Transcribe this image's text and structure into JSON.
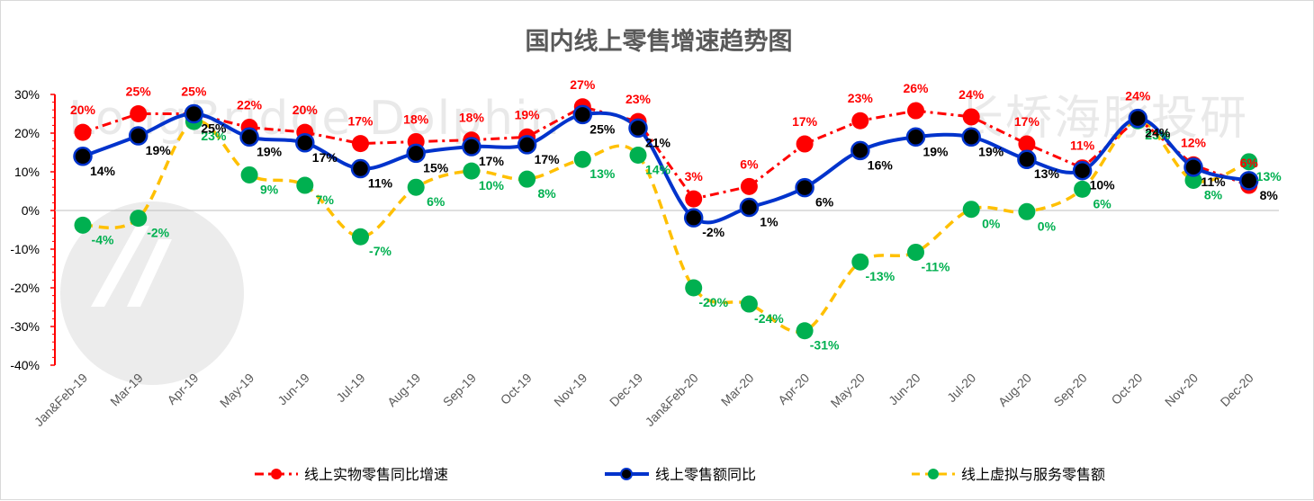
{
  "chart_data": {
    "type": "line",
    "title": "国内线上零售增速趋势图",
    "categories": [
      "Jan&Feb-19",
      "Mar-19",
      "Apr-19",
      "May-19",
      "Jun-19",
      "Jul-19",
      "Aug-19",
      "Sep-19",
      "Oct-19",
      "Nov-19",
      "Dec-19",
      "Jan&Feb-20",
      "Mar-20",
      "Apr-20",
      "May-20",
      "Jun-20",
      "Jul-20",
      "Aug-20",
      "Sep-20",
      "Oct-20",
      "Nov-20",
      "Dec-20"
    ],
    "ylim": [
      -40,
      30
    ],
    "yticks": [
      "30%",
      "20%",
      "10%",
      "0%",
      "-10%",
      "-20%",
      "-30%",
      "-40%"
    ],
    "ytick_values": [
      30,
      20,
      10,
      0,
      -10,
      -20,
      -30,
      -40
    ],
    "grid": false,
    "legend_position": "bottom",
    "series": [
      {
        "name": "线上实物零售同比增速",
        "color": "#ff0000",
        "line_style": "dash-dot",
        "smooth": false,
        "values": [
          20.2,
          25,
          25,
          21.5,
          20.2,
          17.3,
          17.8,
          18.2,
          19,
          26.8,
          23,
          3,
          6.2,
          17.2,
          23.2,
          25.8,
          24.2,
          17.2,
          11,
          23.8,
          11.8,
          6.5
        ],
        "labels": [
          "20%",
          "25%",
          "25%",
          "22%",
          "20%",
          "17%",
          "18%",
          "18%",
          "19%",
          "27%",
          "23%",
          "3%",
          "6%",
          "17%",
          "23%",
          "26%",
          "24%",
          "17%",
          "11%",
          "24%",
          "12%",
          "6%"
        ]
      },
      {
        "name": "线上零售额同比",
        "color": "#0033cc",
        "line_style": "solid",
        "smooth": true,
        "values": [
          14,
          19.3,
          25,
          19,
          17.5,
          10.8,
          14.8,
          16.5,
          17,
          24.8,
          21.3,
          -1.9,
          0.8,
          5.9,
          15.5,
          19,
          19,
          13.2,
          10.3,
          23.8,
          11.2,
          7.7
        ],
        "labels": [
          "14%",
          "19%",
          "25%",
          "19%",
          "17%",
          "11%",
          "15%",
          "17%",
          "17%",
          "25%",
          "21%",
          "-2%",
          "1%",
          "6%",
          "16%",
          "19%",
          "19%",
          "13%",
          "10%",
          "24%",
          "11%",
          "8%"
        ]
      },
      {
        "name": "线上虚拟与服务零售额",
        "color": "#ffc000",
        "line_style": "dash",
        "smooth": true,
        "values": [
          -3.8,
          -2,
          23,
          9.2,
          6.5,
          -6.8,
          6,
          10.2,
          8.1,
          13.2,
          14.3,
          -20,
          -24.2,
          -31.1,
          -13.3,
          -10.8,
          0.3,
          -0.3,
          5.5,
          23.2,
          7.8,
          12.6
        ],
        "labels": [
          "-4%",
          "-2%",
          "23%",
          "9%",
          "7%",
          "-7%",
          "6%",
          "10%",
          "8%",
          "13%",
          "14%",
          "-20%",
          "-24%",
          "-31%",
          "-13%",
          "-11%",
          "0%",
          "0%",
          "6%",
          "23%",
          "8%",
          "13%"
        ]
      }
    ]
  },
  "legend": {
    "items": [
      "线上实物零售同比增速",
      "线上零售额同比",
      "线上虚拟与服务零售额"
    ]
  },
  "watermark": {
    "text_en": "LongBridge Dolphin",
    "text_cn": "长桥海豚投研"
  }
}
